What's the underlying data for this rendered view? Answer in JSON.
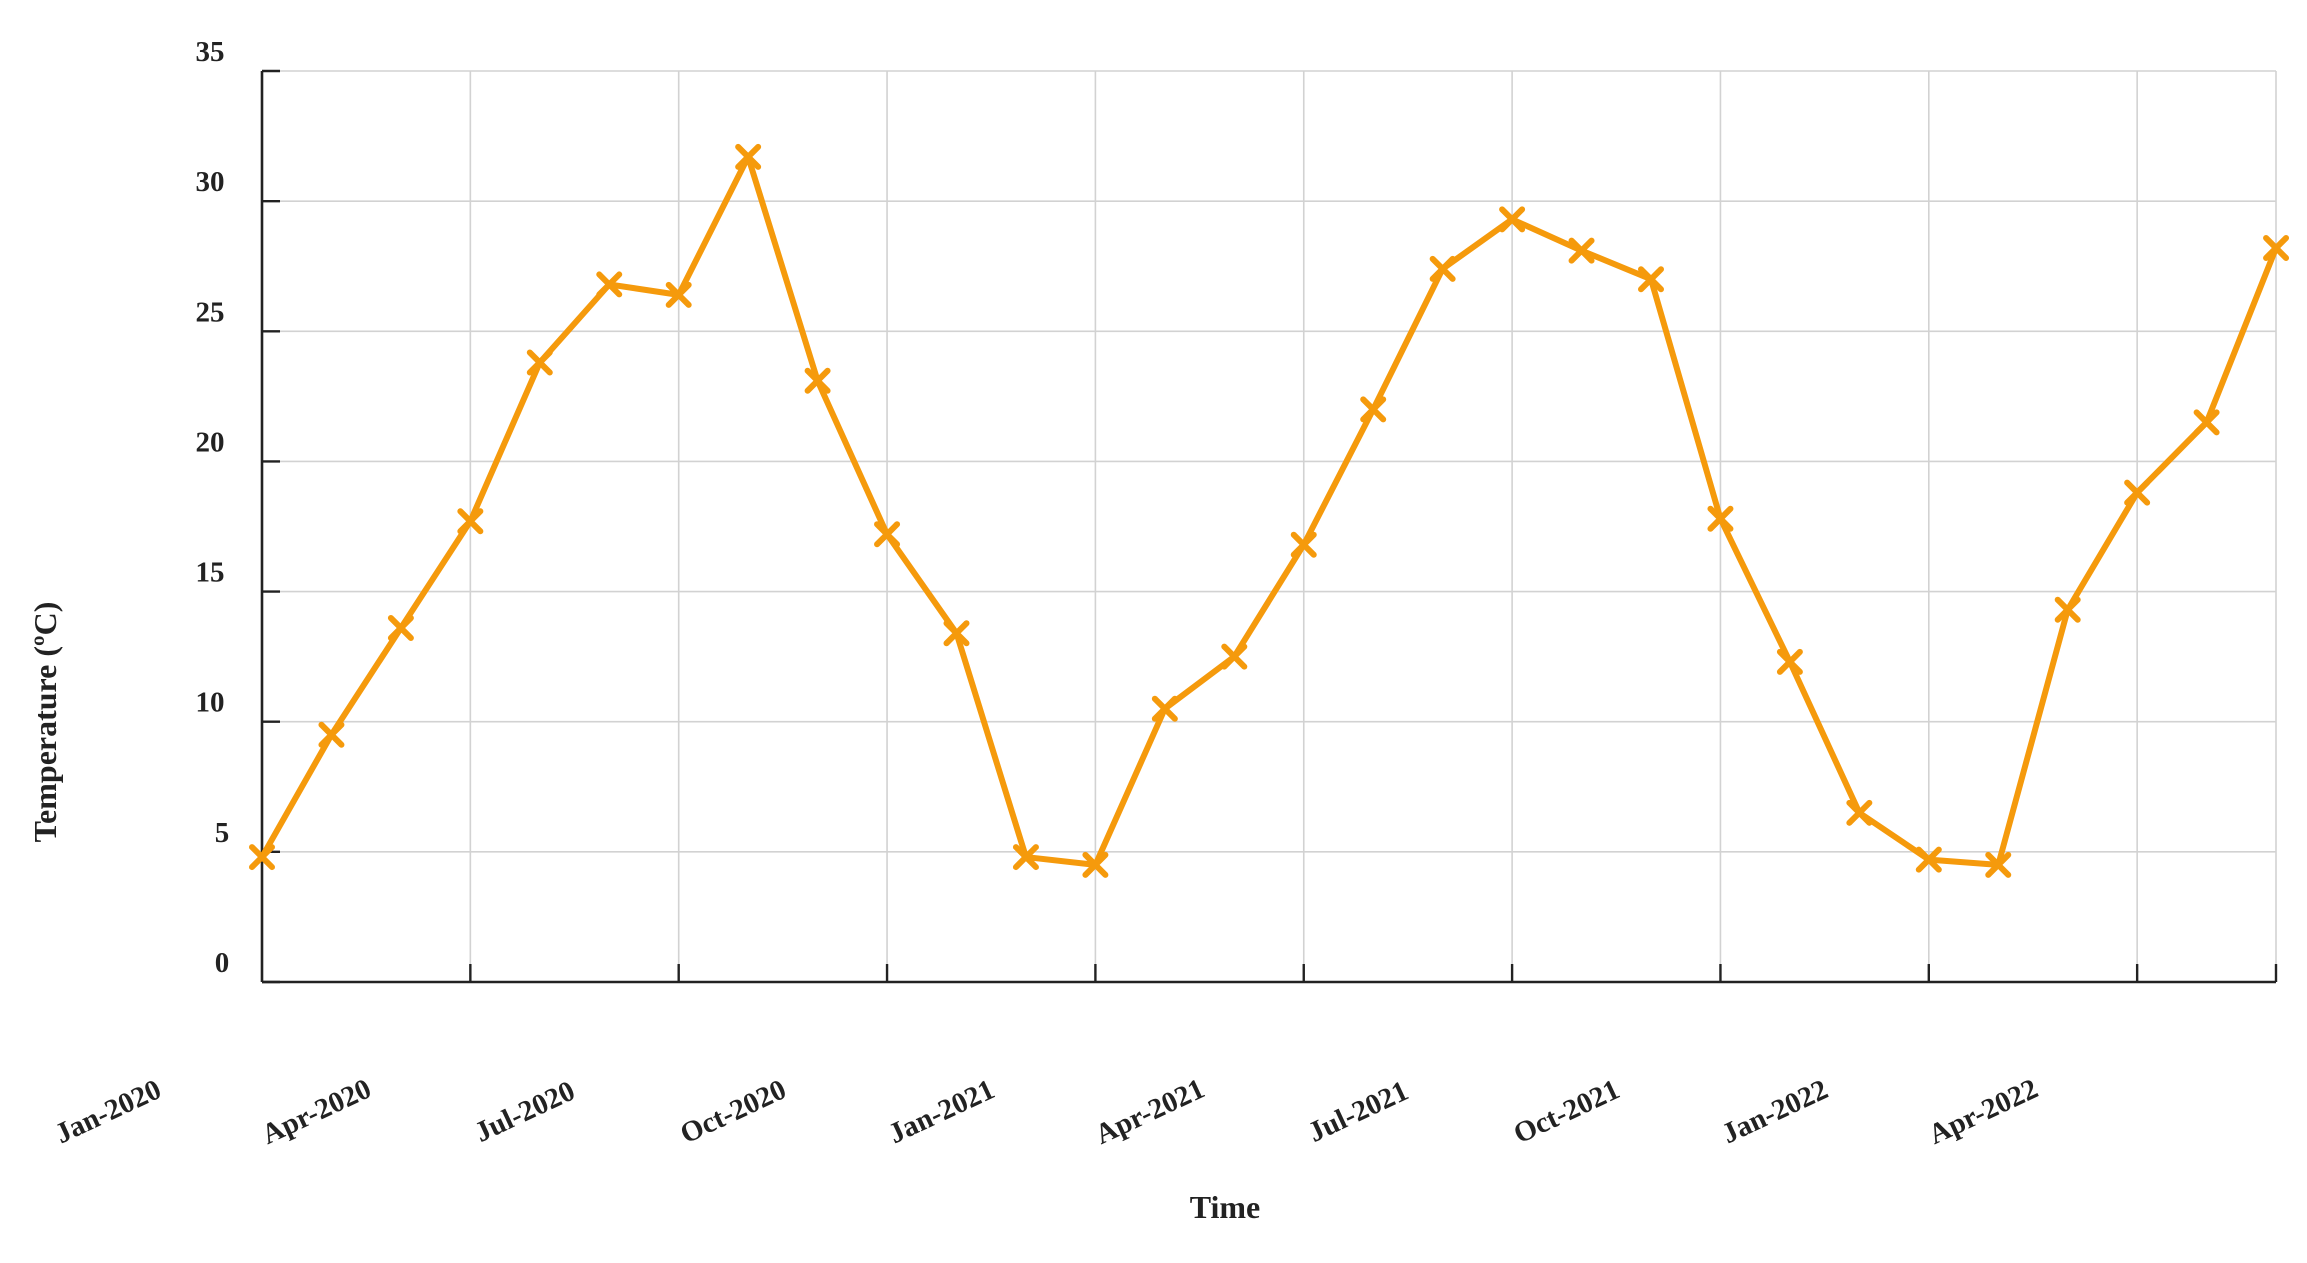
{
  "chart_data": {
    "type": "line",
    "title": "",
    "xlabel": "Time",
    "ylabel": "Temperature (ºC)",
    "ylim": [
      0,
      35
    ],
    "yticks": [
      0,
      5,
      10,
      15,
      20,
      25,
      30,
      35
    ],
    "xticks": [
      "Jan-2020",
      "Apr-2020",
      "Jul-2020",
      "Oct-2020",
      "Jan-2021",
      "Apr-2021",
      "Jul-2021",
      "Oct-2021",
      "Jan-2022",
      "Apr-2022"
    ],
    "grid": true,
    "line_color": "#F59A0C",
    "marker": "x",
    "series": [
      {
        "x": [
          "2020-01",
          "2020-02",
          "2020-03",
          "2020-04",
          "2020-05",
          "2020-06",
          "2020-07",
          "2020-08",
          "2020-09",
          "2020-10",
          "2020-11",
          "2020-12",
          "2021-01",
          "2021-02",
          "2021-03",
          "2021-04",
          "2021-05",
          "2021-06",
          "2021-07",
          "2021-08",
          "2021-09",
          "2021-10",
          "2021-11",
          "2021-12",
          "2022-01",
          "2022-02",
          "2022-03",
          "2022-04",
          "2022-05",
          "2022-06"
        ],
        "values": [
          4.8,
          9.5,
          13.6,
          17.7,
          23.8,
          26.8,
          26.4,
          31.7,
          23.1,
          17.2,
          13.4,
          4.8,
          4.5,
          10.5,
          12.5,
          16.8,
          22.0,
          27.4,
          29.3,
          28.1,
          27.0,
          17.8,
          12.3,
          6.5,
          4.7,
          4.5,
          14.3,
          18.8,
          21.5,
          28.2
        ]
      }
    ]
  }
}
